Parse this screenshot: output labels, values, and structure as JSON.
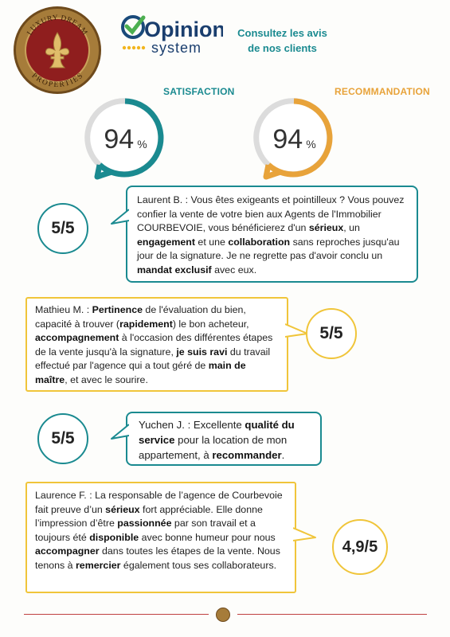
{
  "brand": {
    "badge_text_top": "LUXURY DREAM",
    "badge_text_bottom": "PROPERTIES",
    "opinion_word": "Opinion",
    "system_word": "system",
    "tagline_line1": "Consultez les avis",
    "tagline_line2": "de nos clients"
  },
  "metrics": {
    "satisfaction_label": "SATISFACTION",
    "satisfaction_value": "94",
    "recommandation_label": "RECOMMANDATION",
    "recommandation_value": "94",
    "percent_sign": "%",
    "satisfaction_color": "#1a8a90",
    "recommandation_color": "#e8a33a"
  },
  "reviews": [
    {
      "score": "5/5",
      "segments": [
        "Laurent B. : Vous êtes exigeants et pointilleux ? Vous pouvez confier la vente de votre bien aux Agents de l'Immobilier COURBEVOIE, vous bénéficierez d'un ",
        "sérieux",
        ", un ",
        "engagement",
        " et une ",
        "collaboration",
        " sans reproches jusqu'au jour de la signature. Je ne regrette pas d'avoir conclu un ",
        "mandat exclusif",
        " avec eux."
      ]
    },
    {
      "score": "5/5",
      "segments": [
        "Mathieu M. : ",
        "Pertinence",
        " de l'évaluation du bien, capacité à trouver (",
        "rapidement",
        ") le bon acheteur, ",
        "accompagnement",
        " à l'occasion des différentes étapes de la vente jusqu'à la signature, ",
        "je suis ravi",
        " du travail effectué par l'agence qui a tout géré de ",
        "main de maître",
        ", et avec le sourire."
      ]
    },
    {
      "score": "5/5",
      "segments": [
        "Yuchen J. : Excellente ",
        "qualité du service",
        " pour la location de mon appartement, à ",
        "recommander",
        "."
      ]
    },
    {
      "score": "4,9/5",
      "segments": [
        "Laurence F. : La responsable de l’agence de Courbevoie fait preuve d’un ",
        "sérieux",
        " fort appréciable. Elle donne l’impression d’être ",
        "passionnée",
        " par son travail et a toujours été ",
        "disponible",
        " avec bonne humeur pour nous ",
        "accompagner",
        " dans toutes les étapes de la vente. Nous tenons à ",
        "remercier",
        " également tous ses collaborateurs."
      ]
    }
  ],
  "colors": {
    "teal": "#1a8a90",
    "yellow": "#f0c53a",
    "brand_red": "#8f1e1e",
    "gold": "#a67c3a"
  },
  "icons": {
    "badge": "fleur-de-lis-icon",
    "opinion_check": "checkmark-icon",
    "stars": "star-icon"
  }
}
